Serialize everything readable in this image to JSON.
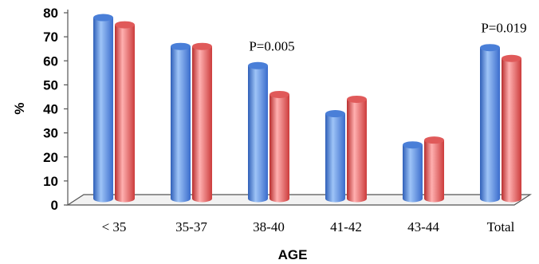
{
  "chart_data": {
    "type": "bar",
    "categories": [
      "< 35",
      "35-37",
      "38-40",
      "41-42",
      "43-44",
      "Total"
    ],
    "series": [
      {
        "color": "#4a7fd8",
        "values": [
          77,
          65,
          57,
          37,
          24,
          64.5
        ]
      },
      {
        "color": "#e05a5a",
        "values": [
          74,
          65,
          45,
          43,
          26,
          60
        ]
      }
    ],
    "xlabel": "AGE",
    "ylabel": "%",
    "ylim": [
      0,
      80
    ],
    "yticks": [
      "0",
      "10",
      "20",
      "30",
      "40",
      "50",
      "60",
      "70",
      "80"
    ],
    "annotations": [
      {
        "category": "38-40",
        "text": "P=0.005"
      },
      {
        "category": "Total",
        "text": "P=0.019"
      }
    ],
    "grid": false,
    "legend": "none"
  }
}
